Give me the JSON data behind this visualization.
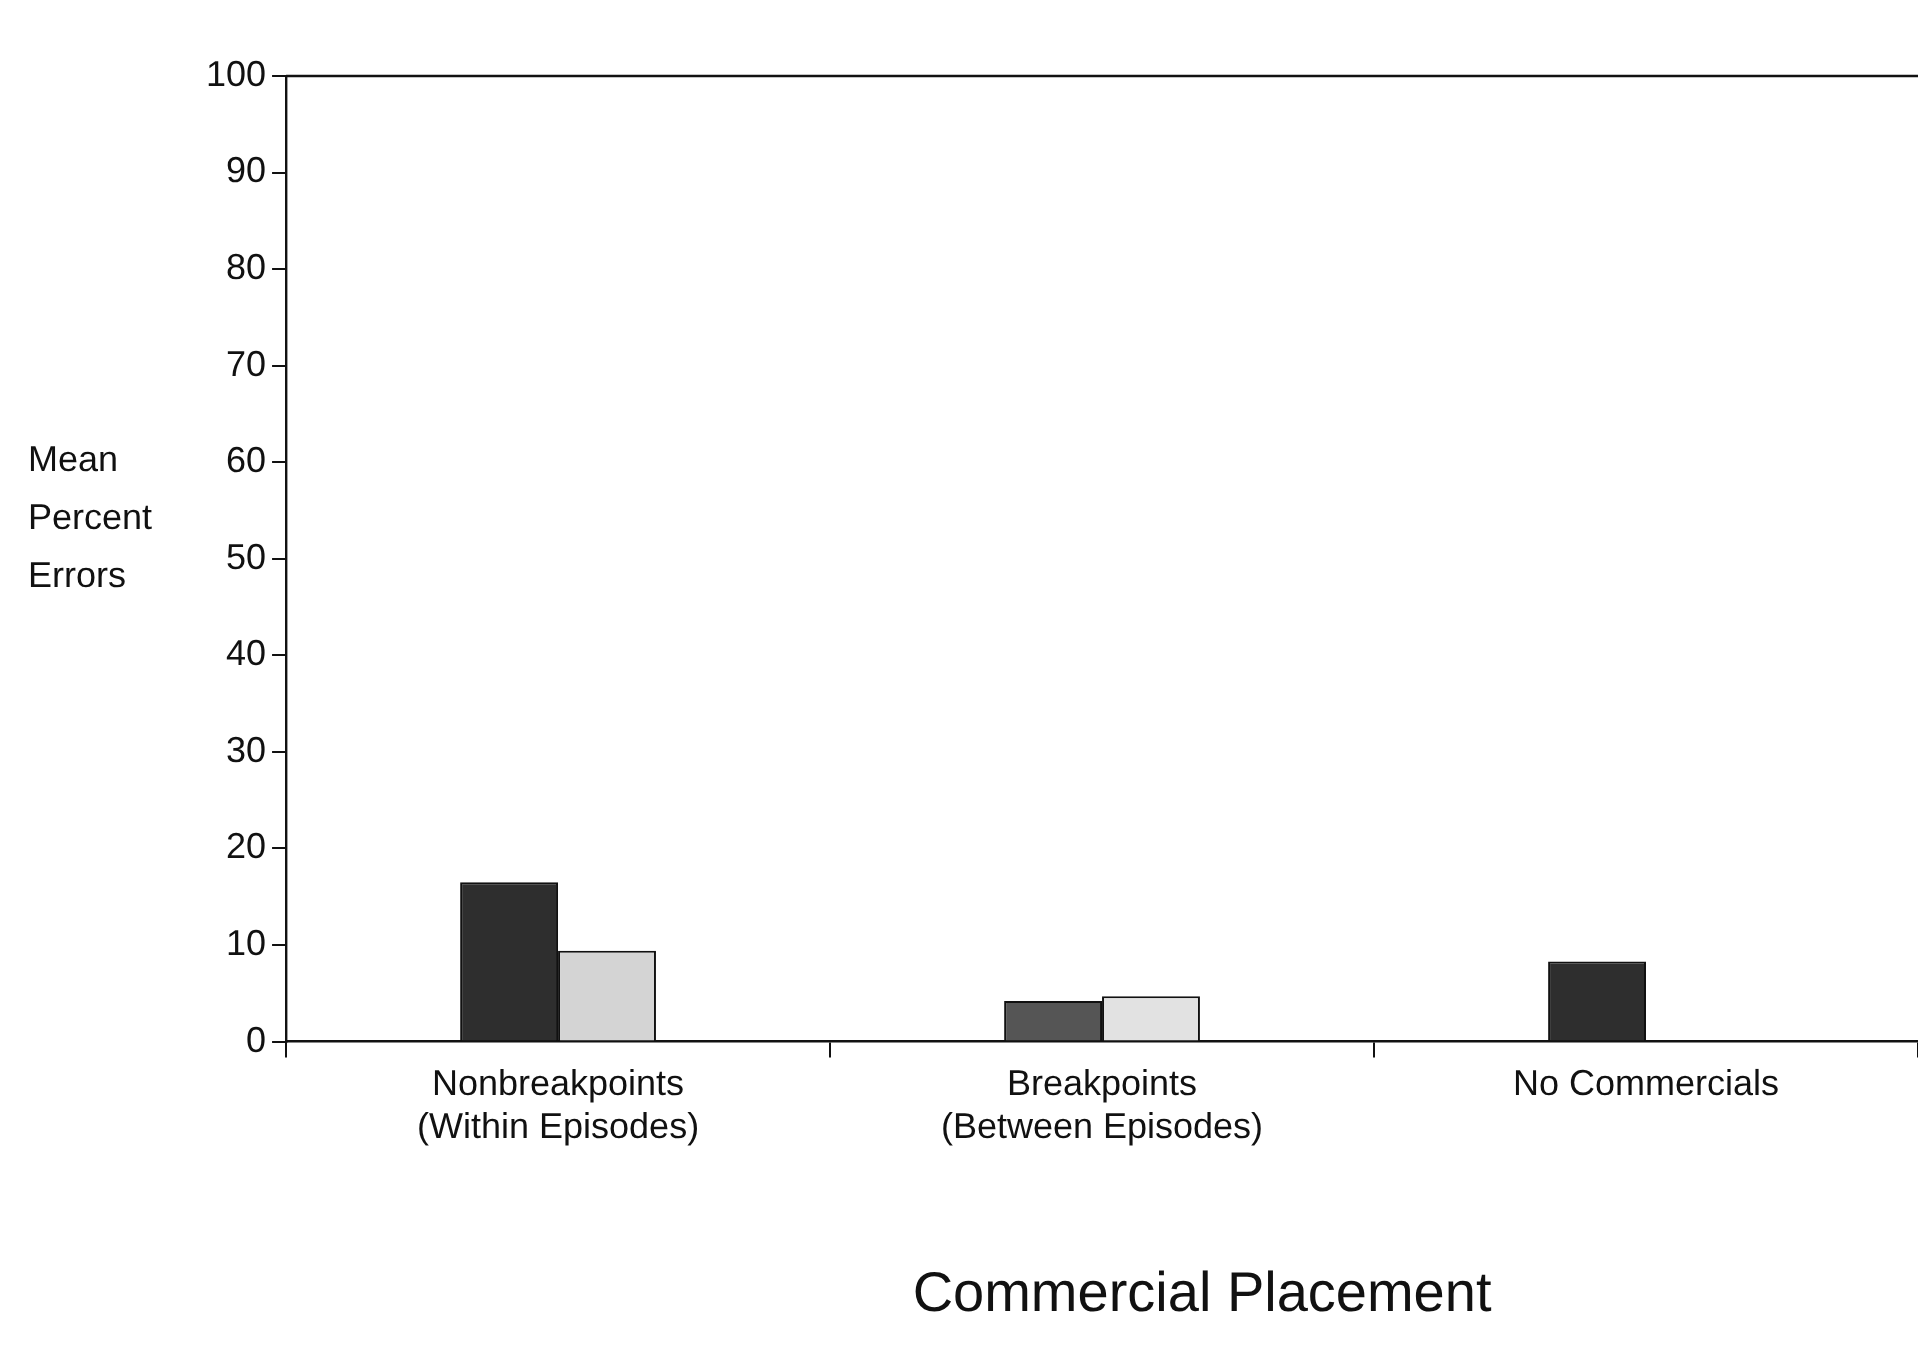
{
  "chart_data": {
    "type": "bar",
    "xlabel": "Commercial Placement",
    "ylabel": "Mean\nPercent\nErrors",
    "categories": [
      "Nonbreakpoints\n(Within Episodes)",
      "Breakpoints\n(Between Episodes)",
      "No Commercials"
    ],
    "series": [
      {
        "colors": [
          "#2e2e2e",
          "#555555",
          "#2e2e2e"
        ],
        "values": [
          16.5,
          4.2,
          8.3
        ]
      },
      {
        "colors": [
          "#d4d4d4",
          "#e2e2e2",
          null
        ],
        "values": [
          9.4,
          4.7,
          null
        ]
      }
    ],
    "ylim": [
      0,
      100
    ],
    "yticks": [
      0,
      10,
      20,
      30,
      40,
      50,
      60,
      70,
      80,
      90,
      100
    ],
    "grid": false,
    "legend": false
  }
}
